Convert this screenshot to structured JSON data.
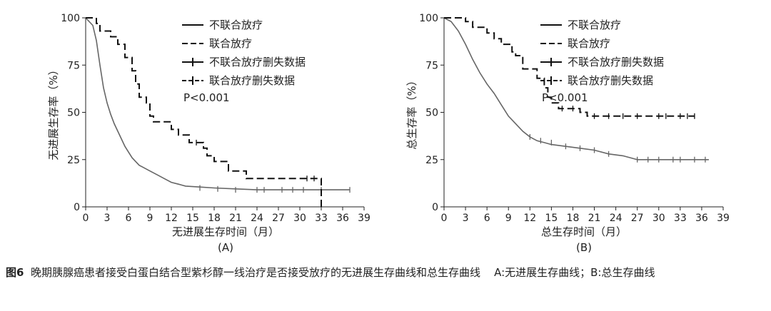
{
  "figure": {
    "number": "图6",
    "caption": "晚期胰腺癌患者接受白蛋白结合型紫杉醇一线治疗是否接受放疗的无进展生存曲线和总生存曲线",
    "caption_suffix": "A:无进展生存曲线；B:总生存曲线"
  },
  "chart_data": [
    {
      "type": "line",
      "panel": "(A)",
      "xlabel": "无进展生存时间（月）",
      "ylabel": "无进展生存率（%）",
      "xlim": [
        0,
        39
      ],
      "ylim": [
        0,
        100
      ],
      "xticks": [
        0,
        3,
        6,
        9,
        12,
        15,
        18,
        21,
        24,
        27,
        30,
        33,
        36,
        39
      ],
      "yticks": [
        0,
        25,
        50,
        75,
        100
      ],
      "legend": [
        "不联合放疗",
        "联合放疗",
        "不联合放疗删失数据",
        "联合放疗删失数据"
      ],
      "legend_position": "top-right",
      "annotation": "P<0.001",
      "series": [
        {
          "name": "不联合放疗",
          "style": "solid",
          "color": "#666666",
          "points": [
            [
              0,
              100
            ],
            [
              0.5,
              98
            ],
            [
              1,
              96
            ],
            [
              1.5,
              88
            ],
            [
              2,
              75
            ],
            [
              2.5,
              63
            ],
            [
              3,
              55
            ],
            [
              3.5,
              49
            ],
            [
              4,
              44
            ],
            [
              4.5,
              40
            ],
            [
              5,
              36
            ],
            [
              5.5,
              32
            ],
            [
              6,
              29
            ],
            [
              6.5,
              26
            ],
            [
              7,
              24
            ],
            [
              7.5,
              22
            ],
            [
              8,
              21
            ],
            [
              9,
              19
            ],
            [
              10,
              17
            ],
            [
              11,
              15
            ],
            [
              12,
              13
            ],
            [
              13,
              12
            ],
            [
              14,
              11
            ],
            [
              16,
              10.5
            ],
            [
              18,
              10
            ],
            [
              21,
              9.5
            ],
            [
              24,
              9
            ],
            [
              30,
              9
            ],
            [
              37,
              9
            ]
          ],
          "censored": [
            [
              16,
              10
            ],
            [
              18.5,
              9.5
            ],
            [
              21,
              9
            ],
            [
              24,
              9
            ],
            [
              25,
              9
            ],
            [
              27.5,
              9
            ],
            [
              29,
              9
            ],
            [
              30.5,
              9
            ],
            [
              33,
              9
            ],
            [
              37,
              9
            ]
          ]
        },
        {
          "name": "联合放疗",
          "style": "dashed",
          "color": "#111111",
          "points": [
            [
              0,
              100
            ],
            [
              1.5,
              100
            ],
            [
              1.5,
              97
            ],
            [
              2,
              97
            ],
            [
              2,
              93
            ],
            [
              3.5,
              93
            ],
            [
              3.5,
              90
            ],
            [
              4.5,
              90
            ],
            [
              4.5,
              86
            ],
            [
              5.5,
              86
            ],
            [
              5.5,
              79
            ],
            [
              6.5,
              79
            ],
            [
              6.5,
              72
            ],
            [
              7,
              72
            ],
            [
              7,
              65
            ],
            [
              7.5,
              65
            ],
            [
              7.5,
              58
            ],
            [
              8.5,
              58
            ],
            [
              8.5,
              55
            ],
            [
              9,
              55
            ],
            [
              9,
              48
            ],
            [
              9.5,
              48
            ],
            [
              9.5,
              45
            ],
            [
              12,
              45
            ],
            [
              12,
              41
            ],
            [
              13,
              41
            ],
            [
              13,
              38
            ],
            [
              14.5,
              38
            ],
            [
              14.5,
              34
            ],
            [
              16.5,
              34
            ],
            [
              16.5,
              31
            ],
            [
              17,
              31
            ],
            [
              17,
              27
            ],
            [
              18,
              27
            ],
            [
              18,
              24
            ],
            [
              20,
              24
            ],
            [
              20,
              19
            ],
            [
              22.5,
              19
            ],
            [
              22.5,
              15
            ],
            [
              33,
              15
            ],
            [
              33,
              0
            ]
          ],
          "censored": [
            [
              15.5,
              34
            ],
            [
              31,
              15
            ],
            [
              32,
              15
            ]
          ]
        }
      ]
    },
    {
      "type": "line",
      "panel": "(B)",
      "xlabel": "总生存时间（月）",
      "ylabel": "总生存率（%）",
      "xlim": [
        0,
        39
      ],
      "ylim": [
        0,
        100
      ],
      "xticks": [
        0,
        3,
        6,
        9,
        12,
        15,
        18,
        21,
        24,
        27,
        30,
        33,
        36,
        39
      ],
      "yticks": [
        0,
        25,
        50,
        75,
        100
      ],
      "legend": [
        "不联合放疗",
        "联合放疗",
        "不联合放疗删失数据",
        "联合放疗删失数据"
      ],
      "legend_position": "top-right",
      "annotation": "P<0.001",
      "series": [
        {
          "name": "不联合放疗",
          "style": "solid",
          "color": "#666666",
          "points": [
            [
              0,
              100
            ],
            [
              1,
              98
            ],
            [
              2,
              93
            ],
            [
              3,
              86
            ],
            [
              4,
              78
            ],
            [
              5,
              71
            ],
            [
              6,
              65
            ],
            [
              7,
              60
            ],
            [
              8,
              54
            ],
            [
              9,
              48
            ],
            [
              10,
              44
            ],
            [
              11,
              40
            ],
            [
              12,
              37
            ],
            [
              13,
              35
            ],
            [
              14,
              34
            ],
            [
              15,
              33
            ],
            [
              17,
              32
            ],
            [
              19,
              31
            ],
            [
              21,
              30
            ],
            [
              23,
              28
            ],
            [
              25,
              27
            ],
            [
              27,
              25
            ],
            [
              30,
              25
            ],
            [
              37,
              25
            ]
          ],
          "censored": [
            [
              12,
              37
            ],
            [
              13.5,
              35
            ],
            [
              15,
              34
            ],
            [
              17,
              32
            ],
            [
              19,
              31
            ],
            [
              21,
              30
            ],
            [
              23,
              28
            ],
            [
              27,
              25
            ],
            [
              28.5,
              25
            ],
            [
              30,
              25
            ],
            [
              32,
              25
            ],
            [
              33,
              25
            ],
            [
              35,
              25
            ],
            [
              36.5,
              25
            ]
          ]
        },
        {
          "name": "联合放疗",
          "style": "dashed",
          "color": "#111111",
          "points": [
            [
              0,
              100
            ],
            [
              3,
              100
            ],
            [
              3,
              98
            ],
            [
              4,
              98
            ],
            [
              4,
              95
            ],
            [
              6,
              95
            ],
            [
              6,
              92
            ],
            [
              7,
              92
            ],
            [
              7,
              89
            ],
            [
              8,
              89
            ],
            [
              8,
              86
            ],
            [
              9.5,
              86
            ],
            [
              9.5,
              82
            ],
            [
              10,
              82
            ],
            [
              10,
              80
            ],
            [
              11,
              80
            ],
            [
              11,
              73
            ],
            [
              13,
              73
            ],
            [
              13,
              68
            ],
            [
              14,
              68
            ],
            [
              14,
              63
            ],
            [
              14.5,
              63
            ],
            [
              14.5,
              58
            ],
            [
              15,
              58
            ],
            [
              15,
              55
            ],
            [
              16,
              55
            ],
            [
              16,
              52
            ],
            [
              19,
              52
            ],
            [
              19,
              50
            ],
            [
              20,
              50
            ],
            [
              20,
              48
            ],
            [
              35,
              48
            ]
          ],
          "censored": [
            [
              16.5,
              52
            ],
            [
              18,
              52
            ],
            [
              21,
              48
            ],
            [
              23,
              48
            ],
            [
              25,
              48
            ],
            [
              27,
              48
            ],
            [
              30,
              48
            ],
            [
              31,
              48
            ],
            [
              33,
              48
            ],
            [
              34,
              48
            ],
            [
              35,
              48
            ]
          ]
        }
      ]
    }
  ]
}
